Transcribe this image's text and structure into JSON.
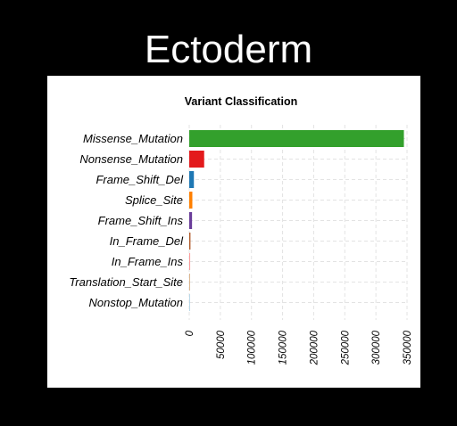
{
  "page": {
    "heading": "Ectoderm"
  },
  "chart_data": {
    "type": "bar",
    "orientation": "horizontal",
    "title": "Variant Classification",
    "xlabel": "",
    "ylabel": "",
    "xlim": [
      0,
      350000
    ],
    "xticks": [
      0,
      50000,
      100000,
      150000,
      200000,
      250000,
      300000,
      350000
    ],
    "grid": true,
    "categories": [
      "Missense_Mutation",
      "Nonsense_Mutation",
      "Frame_Shift_Del",
      "Splice_Site",
      "Frame_Shift_Ins",
      "In_Frame_Del",
      "In_Frame_Ins",
      "Translation_Start_Site",
      "Nonstop_Mutation"
    ],
    "values": [
      345000,
      24000,
      7500,
      5000,
      4500,
      2000,
      1500,
      800,
      300
    ],
    "colors": [
      "#33a02c",
      "#e31a1c",
      "#1f78b4",
      "#ff7f00",
      "#6a3d9a",
      "#b15928",
      "#fb9a99",
      "#d4a373",
      "#a6cee3"
    ]
  }
}
